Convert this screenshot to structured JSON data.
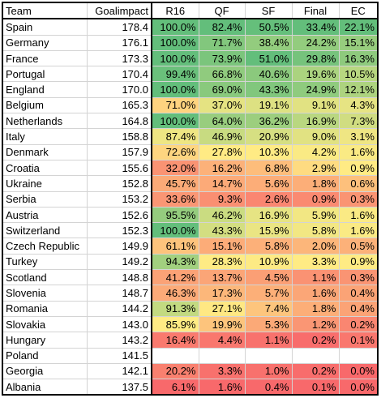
{
  "columns": [
    "Team",
    "Goalimpact",
    "R16",
    "QF",
    "SF",
    "Final",
    "EC"
  ],
  "color_scale": {
    "low": "#f8696b",
    "mid": "#ffeb84",
    "high": "#63be7b"
  },
  "rows": [
    {
      "team": "Spain",
      "goalimpact": "178.4",
      "r16": "100.0%",
      "qf": "82.4%",
      "sf": "50.5%",
      "final": "33.4%",
      "ec": "22.1%"
    },
    {
      "team": "Germany",
      "goalimpact": "176.1",
      "r16": "100.0%",
      "qf": "71.7%",
      "sf": "38.4%",
      "final": "24.2%",
      "ec": "15.1%"
    },
    {
      "team": "France",
      "goalimpact": "173.3",
      "r16": "100.0%",
      "qf": "73.9%",
      "sf": "51.0%",
      "final": "29.8%",
      "ec": "16.3%"
    },
    {
      "team": "Portugal",
      "goalimpact": "170.4",
      "r16": "99.4%",
      "qf": "66.8%",
      "sf": "40.6%",
      "final": "19.6%",
      "ec": "10.5%"
    },
    {
      "team": "England",
      "goalimpact": "170.0",
      "r16": "100.0%",
      "qf": "69.0%",
      "sf": "43.3%",
      "final": "24.9%",
      "ec": "12.1%"
    },
    {
      "team": "Belgium",
      "goalimpact": "165.3",
      "r16": "71.0%",
      "qf": "37.0%",
      "sf": "19.1%",
      "final": "9.1%",
      "ec": "4.3%"
    },
    {
      "team": "Netherlands",
      "goalimpact": "164.8",
      "r16": "100.0%",
      "qf": "64.0%",
      "sf": "36.2%",
      "final": "16.9%",
      "ec": "7.3%"
    },
    {
      "team": "Italy",
      "goalimpact": "158.8",
      "r16": "87.4%",
      "qf": "46.9%",
      "sf": "20.9%",
      "final": "9.0%",
      "ec": "3.1%"
    },
    {
      "team": "Denmark",
      "goalimpact": "157.9",
      "r16": "72.6%",
      "qf": "27.8%",
      "sf": "10.3%",
      "final": "4.2%",
      "ec": "1.6%"
    },
    {
      "team": "Croatia",
      "goalimpact": "155.6",
      "r16": "32.0%",
      "qf": "16.2%",
      "sf": "6.8%",
      "final": "2.9%",
      "ec": "0.9%"
    },
    {
      "team": "Ukraine",
      "goalimpact": "152.8",
      "r16": "45.7%",
      "qf": "14.7%",
      "sf": "5.6%",
      "final": "1.8%",
      "ec": "0.6%"
    },
    {
      "team": "Serbia",
      "goalimpact": "153.2",
      "r16": "33.6%",
      "qf": "9.3%",
      "sf": "2.6%",
      "final": "0.9%",
      "ec": "0.3%"
    },
    {
      "team": "Austria",
      "goalimpact": "152.6",
      "r16": "95.5%",
      "qf": "46.2%",
      "sf": "16.9%",
      "final": "5.9%",
      "ec": "1.6%"
    },
    {
      "team": "Switzerland",
      "goalimpact": "152.3",
      "r16": "100.0%",
      "qf": "43.3%",
      "sf": "15.9%",
      "final": "5.8%",
      "ec": "1.6%"
    },
    {
      "team": "Czech Republic",
      "goalimpact": "149.9",
      "r16": "61.1%",
      "qf": "15.1%",
      "sf": "5.8%",
      "final": "2.0%",
      "ec": "0.5%"
    },
    {
      "team": "Turkey",
      "goalimpact": "149.2",
      "r16": "94.3%",
      "qf": "28.3%",
      "sf": "10.9%",
      "final": "3.3%",
      "ec": "0.9%"
    },
    {
      "team": "Scotland",
      "goalimpact": "148.8",
      "r16": "41.2%",
      "qf": "13.7%",
      "sf": "4.5%",
      "final": "1.1%",
      "ec": "0.3%"
    },
    {
      "team": "Slovenia",
      "goalimpact": "148.7",
      "r16": "46.3%",
      "qf": "17.3%",
      "sf": "5.7%",
      "final": "1.6%",
      "ec": "0.4%"
    },
    {
      "team": "Romania",
      "goalimpact": "144.2",
      "r16": "91.3%",
      "qf": "27.1%",
      "sf": "7.4%",
      "final": "1.8%",
      "ec": "0.4%"
    },
    {
      "team": "Slovakia",
      "goalimpact": "143.0",
      "r16": "85.9%",
      "qf": "19.9%",
      "sf": "5.3%",
      "final": "1.2%",
      "ec": "0.2%"
    },
    {
      "team": "Hungary",
      "goalimpact": "143.2",
      "r16": "16.4%",
      "qf": "4.4%",
      "sf": "1.1%",
      "final": "0.2%",
      "ec": "0.1%"
    },
    {
      "team": "Poland",
      "goalimpact": "141.5",
      "r16": "",
      "qf": "",
      "sf": "",
      "final": "",
      "ec": ""
    },
    {
      "team": "Georgia",
      "goalimpact": "142.1",
      "r16": "20.2%",
      "qf": "3.3%",
      "sf": "1.0%",
      "final": "0.2%",
      "ec": "0.0%"
    },
    {
      "team": "Albania",
      "goalimpact": "137.5",
      "r16": "6.1%",
      "qf": "1.6%",
      "sf": "0.4%",
      "final": "0.1%",
      "ec": "0.0%"
    }
  ]
}
